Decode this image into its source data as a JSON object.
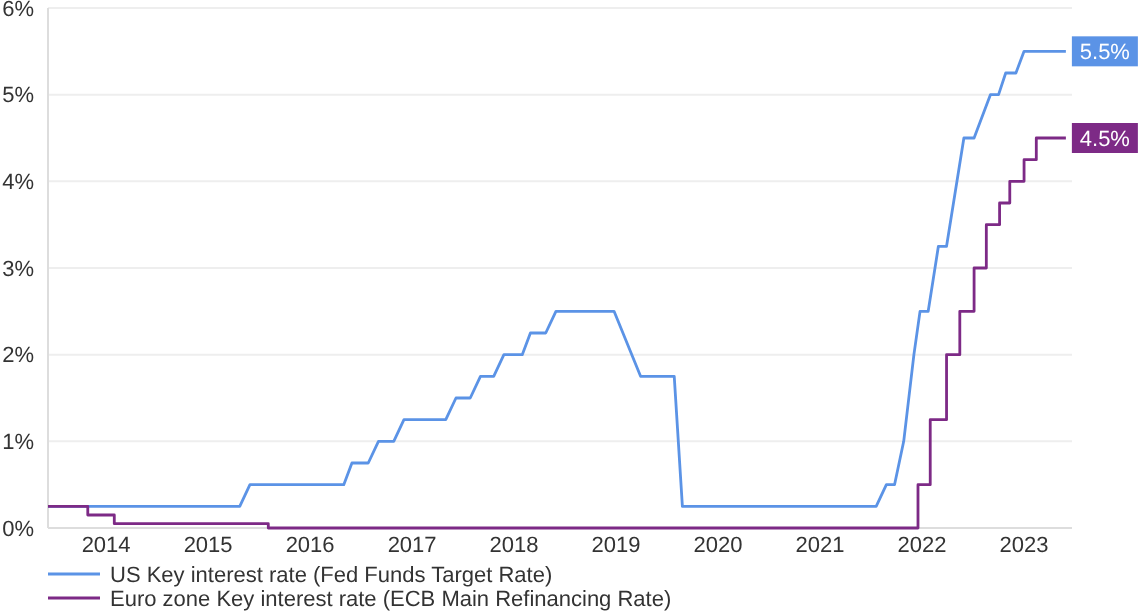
{
  "chart_data": {
    "type": "line",
    "xlim": [
      2013.93,
      2023.97
    ],
    "ylim": [
      0,
      6
    ],
    "xticks": [
      {
        "value": 2014.5,
        "label": "2014"
      },
      {
        "value": 2015.5,
        "label": "2015"
      },
      {
        "value": 2016.5,
        "label": "2016"
      },
      {
        "value": 2017.5,
        "label": "2017"
      },
      {
        "value": 2018.5,
        "label": "2018"
      },
      {
        "value": 2019.5,
        "label": "2019"
      },
      {
        "value": 2020.5,
        "label": "2020"
      },
      {
        "value": 2021.5,
        "label": "2021"
      },
      {
        "value": 2022.5,
        "label": "2022"
      },
      {
        "value": 2023.5,
        "label": "2023"
      }
    ],
    "yticks": [
      {
        "value": 0,
        "label": "0%"
      },
      {
        "value": 1,
        "label": "1%"
      },
      {
        "value": 2,
        "label": "2%"
      },
      {
        "value": 3,
        "label": "3%"
      },
      {
        "value": 4,
        "label": "4%"
      },
      {
        "value": 5,
        "label": "5%"
      },
      {
        "value": 6,
        "label": "6%"
      }
    ],
    "grid": "y",
    "legend": "bottom",
    "marker": "none",
    "line_style": "solid",
    "series": [
      {
        "name": "US Key interest rate (Fed Funds Target Rate)",
        "color": "#5b93e6",
        "x": [
          2013.93,
          2015.81,
          2015.91,
          2016.83,
          2016.91,
          2017.07,
          2017.17,
          2017.32,
          2017.42,
          2017.83,
          2017.93,
          2018.07,
          2018.17,
          2018.3,
          2018.4,
          2018.58,
          2018.66,
          2018.81,
          2018.91,
          2019.48,
          2019.74,
          2020.07,
          2020.15,
          2022.05,
          2022.15,
          2022.23,
          2022.32,
          2022.42,
          2022.48,
          2022.56,
          2022.66,
          2022.74,
          2022.91,
          2023.01,
          2023.17,
          2023.25,
          2023.32,
          2023.42,
          2023.5,
          2023.91
        ],
        "values": [
          0.25,
          0.25,
          0.5,
          0.5,
          0.75,
          0.75,
          1,
          1,
          1.25,
          1.25,
          1.5,
          1.5,
          1.75,
          1.75,
          2,
          2,
          2.25,
          2.25,
          2.5,
          2.5,
          1.75,
          1.75,
          0.25,
          0.25,
          0.5,
          0.5,
          1,
          2,
          2.5,
          2.5,
          3.25,
          3.25,
          4.5,
          4.5,
          5,
          5,
          5.25,
          5.25,
          5.5,
          5.5
        ]
      },
      {
        "name": "Euro zone Key interest rate (ECB Main Refinancing Rate)",
        "color": "#7d2a86",
        "x": [
          2013.93,
          2014.32,
          2014.32,
          2014.58,
          2014.58,
          2016.09,
          2016.09,
          2022.46,
          2022.46,
          2022.58,
          2022.58,
          2022.74,
          2022.74,
          2022.87,
          2022.87,
          2023.01,
          2023.01,
          2023.13,
          2023.13,
          2023.26,
          2023.26,
          2023.36,
          2023.36,
          2023.5,
          2023.5,
          2023.62,
          2023.62,
          2023.91
        ],
        "values": [
          0.25,
          0.25,
          0.15,
          0.15,
          0.05,
          0.05,
          0,
          0,
          0.5,
          0.5,
          1.25,
          1.25,
          2,
          2,
          2.5,
          2.5,
          3,
          3,
          3.5,
          3.5,
          3.75,
          3.75,
          4,
          4,
          4.25,
          4.25,
          4.5,
          4.5
        ]
      }
    ],
    "annotations": [
      {
        "text": "5.5%",
        "x": 2023.91,
        "y": 5.5
      },
      {
        "text": "4.5%",
        "x": 2023.91,
        "y": 4.5
      }
    ]
  }
}
